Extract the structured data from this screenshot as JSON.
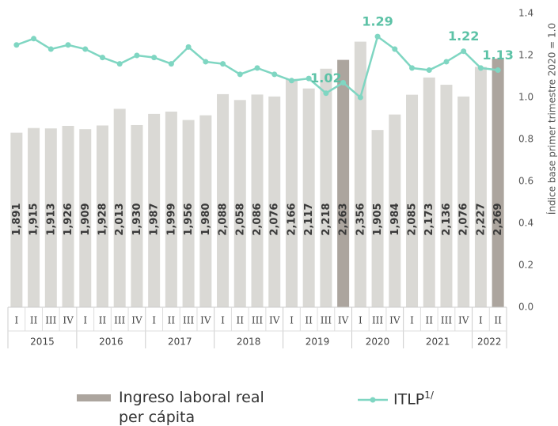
{
  "chart_data": {
    "type": "bar-line",
    "groups": [
      {
        "name": "2015",
        "categories": [
          "I",
          "II",
          "III",
          "IV"
        ]
      },
      {
        "name": "2016",
        "categories": [
          "I",
          "II",
          "III",
          "IV"
        ]
      },
      {
        "name": "2017",
        "categories": [
          "I",
          "II",
          "III",
          "IV"
        ]
      },
      {
        "name": "2018",
        "categories": [
          "I",
          "II",
          "III",
          "IV"
        ]
      },
      {
        "name": "2019",
        "categories": [
          "I",
          "II",
          "III",
          "IV"
        ]
      },
      {
        "name": "2020",
        "categories": [
          "I",
          "III",
          "IV"
        ]
      },
      {
        "name": "2021",
        "categories": [
          "I",
          "II",
          "III",
          "IV"
        ]
      },
      {
        "name": "2022",
        "categories": [
          "I",
          "II"
        ]
      }
    ],
    "ylim": [
      1000,
      2500
    ],
    "y2lim": [
      0,
      1.4
    ],
    "y2label": "Índice base primer trimestre 2020 = 1.0",
    "y2ticks": [
      {
        "value": 0,
        "label": "0.0"
      },
      0.2,
      0.4,
      0.6,
      0.8,
      {
        "value": 1,
        "label": "1.0"
      },
      1.2,
      1.4
    ],
    "series": [
      {
        "name": "Ingreso laboral real per cápita",
        "type": "bar",
        "color": "#aca59e",
        "bar_colors": [
          "#dad9d5",
          "#dad9d5",
          "#dad9d5",
          "#dad9d5",
          "#dad9d5",
          "#dad9d5",
          "#dad9d5",
          "#dad9d5",
          "#dad9d5",
          "#dad9d5",
          "#dad9d5",
          "#dad9d5",
          "#dad9d5",
          "#dad9d5",
          "#dad9d5",
          "#dad9d5",
          "#dad9d5",
          "#dad9d5",
          "#dad9d5",
          "#aca59e",
          "#dad9d5",
          "#dad9d5",
          "#dad9d5",
          "#dad9d5",
          "#dad9d5",
          "#dad9d5",
          "#dad9d5",
          "#dad9d5",
          "#aca59e"
        ],
        "values": [
          1891,
          1915,
          1913,
          1926,
          1909,
          1928,
          2013,
          1930,
          1987,
          1999,
          1956,
          1980,
          2088,
          2058,
          2086,
          2076,
          2166,
          2117,
          2218,
          2263,
          2356,
          1905,
          1984,
          2085,
          2173,
          2136,
          2076,
          2227,
          2269
        ],
        "value_labels": [
          "1,891",
          "1,915",
          "1,913",
          "1,926",
          "1,909",
          "1,928",
          "2,013",
          "1,930",
          "1,987",
          "1,999",
          "1,956",
          "1,980",
          "2,088",
          "2,058",
          "2,086",
          "2,076",
          "2,166",
          "2,117",
          "2,218",
          "2,263",
          "2,356",
          "1,905",
          "1,984",
          "2,085",
          "2,173",
          "2,136",
          "2,076",
          "2,227",
          "2,269"
        ]
      },
      {
        "name": "ITLP",
        "name_superscript": "1/",
        "type": "line",
        "axis": "y2",
        "color": "#7fd6c2",
        "label_color": "#5cc2a6",
        "values": [
          1.25,
          1.28,
          1.23,
          1.25,
          1.23,
          1.19,
          1.16,
          1.2,
          1.19,
          1.16,
          1.24,
          1.17,
          1.16,
          1.11,
          1.14,
          1.11,
          1.08,
          1.09,
          1.02,
          1.07,
          1.0,
          1.29,
          1.23,
          1.14,
          1.13,
          1.17,
          1.22,
          1.14,
          1.13
        ],
        "value_labels": [
          null,
          null,
          null,
          null,
          null,
          null,
          null,
          null,
          null,
          null,
          null,
          null,
          null,
          null,
          null,
          null,
          null,
          null,
          "1.02",
          null,
          null,
          "1.29",
          null,
          null,
          null,
          null,
          "1.22",
          null,
          "1.13"
        ]
      }
    ]
  }
}
